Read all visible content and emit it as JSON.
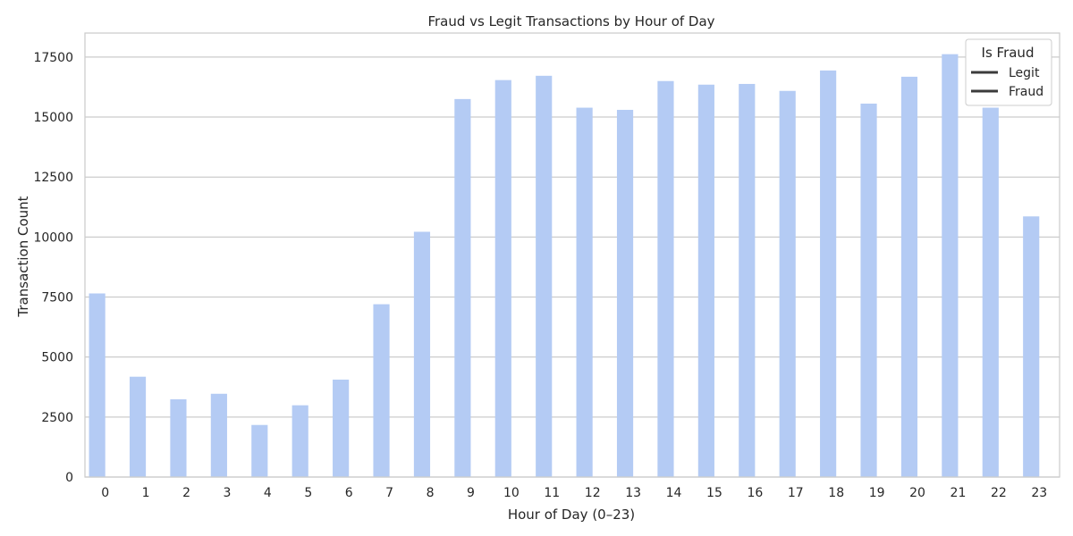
{
  "chart_data": {
    "type": "bar",
    "title": "Fraud vs Legit Transactions by Hour of Day",
    "xlabel": "Hour of Day (0–23)",
    "ylabel": "Transaction Count",
    "categories": [
      "0",
      "1",
      "2",
      "3",
      "4",
      "5",
      "6",
      "7",
      "8",
      "9",
      "10",
      "11",
      "12",
      "13",
      "14",
      "15",
      "16",
      "17",
      "18",
      "19",
      "20",
      "21",
      "22",
      "23"
    ],
    "ylim": [
      0,
      18500
    ],
    "yticks": [
      "0",
      "2500",
      "5000",
      "7500",
      "10000",
      "12500",
      "15000",
      "17500"
    ],
    "grid": true,
    "legend": {
      "title": "Is Fraud",
      "placement": "top-right",
      "entries": [
        "Legit",
        "Fraud"
      ]
    },
    "series": [
      {
        "name": "Legit",
        "color": "#b4cbf4",
        "values": [
          7650,
          4180,
          3240,
          3470,
          2170,
          2990,
          4060,
          7200,
          10220,
          15750,
          16540,
          16720,
          15390,
          15300,
          16500,
          16350,
          16380,
          16090,
          16940,
          15560,
          16680,
          17620,
          15390,
          10860
        ]
      },
      {
        "name": "Fraud",
        "color": "#d6dbe6",
        "values": [
          0,
          0,
          0,
          0,
          0,
          0,
          0,
          0,
          0,
          0,
          0,
          0,
          0,
          0,
          0,
          0,
          0,
          0,
          0,
          0,
          0,
          0,
          0,
          0
        ]
      }
    ],
    "style": {
      "axes_color": "#cccccc",
      "grid_color": "#cccccc",
      "legend_line_color": "#3b3b3b"
    }
  }
}
